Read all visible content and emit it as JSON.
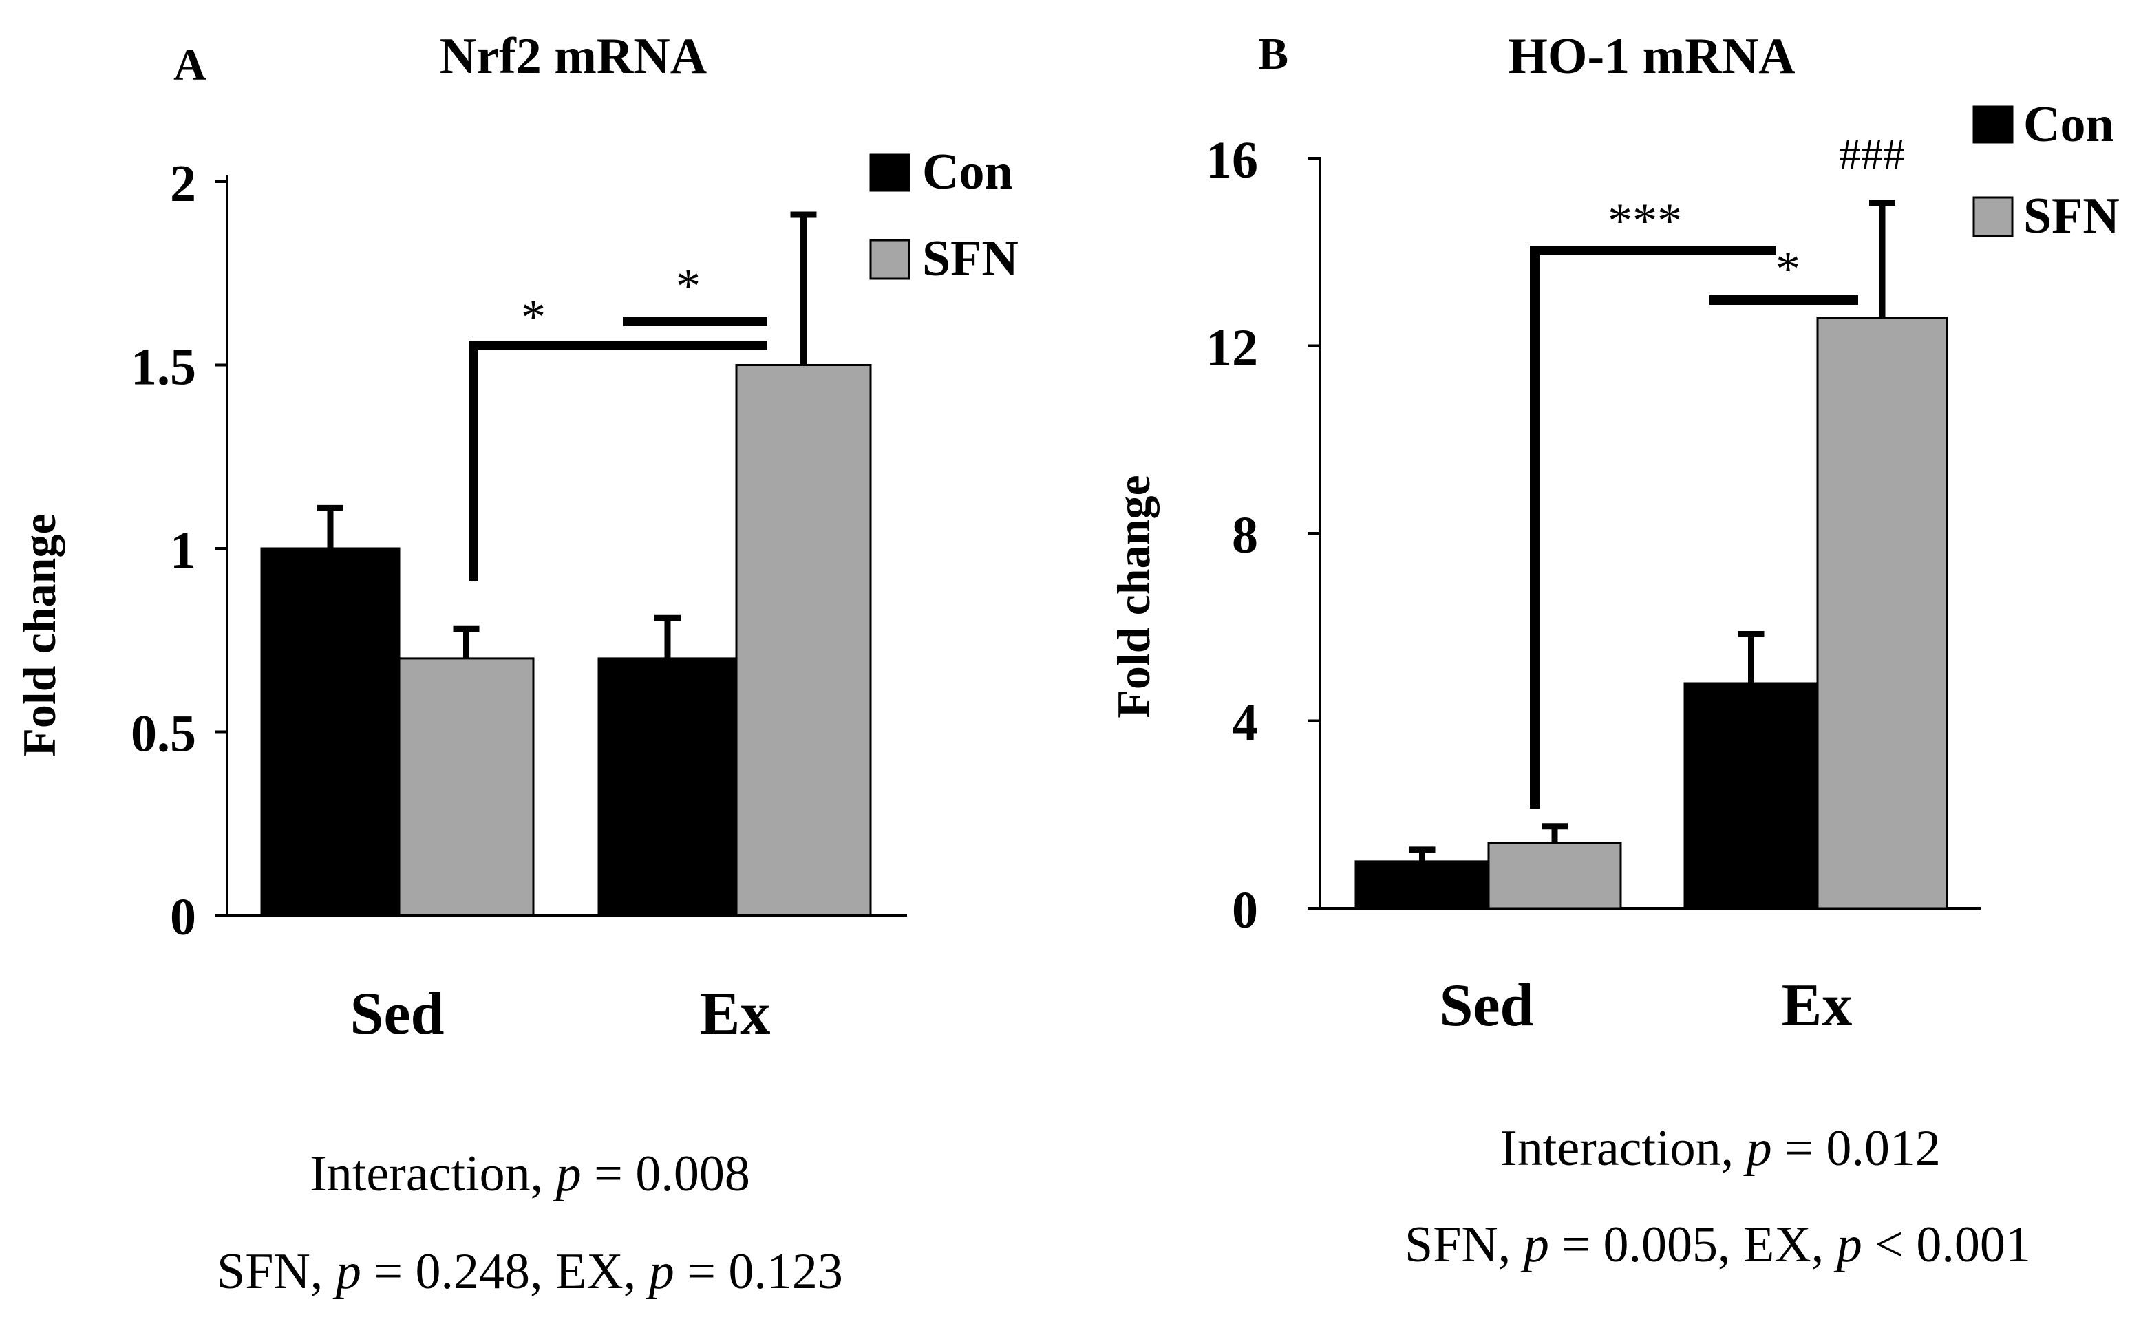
{
  "colors": {
    "con": "#000000",
    "sfn": "#a6a6a6",
    "axis": "#000000",
    "background": "#ffffff"
  },
  "chart_data": [
    {
      "type": "bar",
      "panel_label": "A",
      "title": "Nrf2 mRNA",
      "ylabel": "Fold change",
      "xlabel": "",
      "categories": [
        "Sed",
        "Ex"
      ],
      "ylim": [
        0,
        2
      ],
      "yticks": [
        0,
        0.5,
        1,
        1.5,
        2
      ],
      "ytick_labels": [
        "0",
        "0.5",
        "1",
        "1.5",
        "2"
      ],
      "legend_position": "top-right",
      "series": [
        {
          "name": "Con",
          "values": [
            1.0,
            0.7
          ],
          "errors": [
            0.11,
            0.11
          ]
        },
        {
          "name": "SFN",
          "values": [
            0.7,
            1.5
          ],
          "errors": [
            0.08,
            0.41
          ]
        }
      ],
      "annotations": [
        {
          "text": "*",
          "description": "Sed SFN vs Ex SFN"
        },
        {
          "text": "*",
          "description": "Ex Con vs Ex SFN"
        }
      ],
      "stats": [
        {
          "prefix": "Interaction, ",
          "p_label": "p",
          "rest": " = 0.008"
        },
        {
          "prefix": "SFN, ",
          "p_label": "p",
          "rest": " = 0.248, EX, ",
          "p_label2": "p",
          "rest2": " = 0.123"
        }
      ]
    },
    {
      "type": "bar",
      "panel_label": "B",
      "title": "HO-1 mRNA",
      "ylabel": "Fold change",
      "xlabel": "",
      "categories": [
        "Sed",
        "Ex"
      ],
      "ylim": [
        0,
        16
      ],
      "yticks": [
        0,
        4,
        8,
        12,
        16
      ],
      "ytick_labels": [
        "0",
        "4",
        "8",
        "12",
        "16"
      ],
      "legend_position": "top-right",
      "series": [
        {
          "name": "Con",
          "values": [
            1.0,
            4.8
          ],
          "errors": [
            0.25,
            1.05
          ]
        },
        {
          "name": "SFN",
          "values": [
            1.4,
            12.6
          ],
          "errors": [
            0.35,
            2.45
          ]
        }
      ],
      "annotations": [
        {
          "text": "***",
          "description": "Sed SFN vs Ex SFN"
        },
        {
          "text": "*",
          "description": "Ex Con vs Ex SFN"
        },
        {
          "text": "###",
          "description": "above Ex SFN error bar"
        }
      ],
      "stats": [
        {
          "prefix": "Interaction, ",
          "p_label": "p",
          "rest": " = 0.012"
        },
        {
          "prefix": "SFN, ",
          "p_label": "p",
          "rest": " = 0.005, EX, ",
          "p_label2": "p",
          "rest2": " < 0.001"
        }
      ]
    }
  ]
}
